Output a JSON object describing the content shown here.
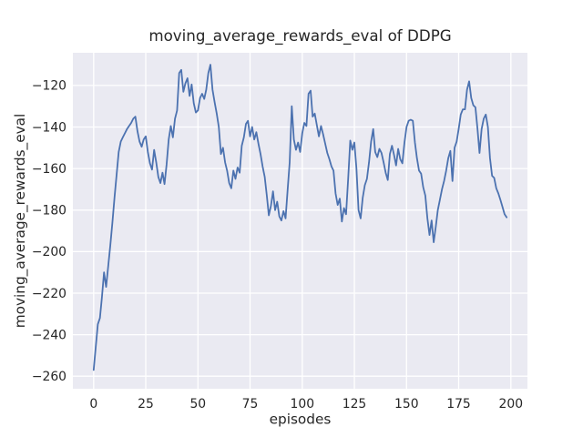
{
  "figure": {
    "background": "#ffffff"
  },
  "chart_data": {
    "type": "line",
    "title": "moving_average_rewards_eval of DDPG",
    "xlabel": "episodes",
    "ylabel": "moving_average_rewards_eval",
    "legend": null,
    "grid": true,
    "plot_bg": "#eaeaf2",
    "grid_color": "#ffffff",
    "line_color": "#4c72b0",
    "text_color": "#262626",
    "xlim": [
      -9.95,
      207.95
    ],
    "ylim": [
      -266.05,
      -104.25
    ],
    "xticks": {
      "values": [
        0,
        25,
        50,
        75,
        100,
        125,
        150,
        175,
        200
      ],
      "labels": [
        "0",
        "25",
        "50",
        "75",
        "100",
        "125",
        "150",
        "175",
        "200"
      ]
    },
    "yticks": {
      "values": [
        -120,
        -140,
        -160,
        -180,
        -200,
        -220,
        -240,
        -260
      ],
      "labels": [
        "−120",
        "−140",
        "−160",
        "−180",
        "−200",
        "−220",
        "−240",
        "−260"
      ]
    },
    "x_start": 0,
    "x_step": 1,
    "values": [
      -257,
      -246,
      -235,
      -232,
      -222,
      -210,
      -217,
      -207,
      -197,
      -186,
      -174,
      -163,
      -152,
      -147,
      -145,
      -143,
      -141,
      -139.5,
      -138,
      -136,
      -135,
      -142,
      -147,
      -149.5,
      -146,
      -144.5,
      -152,
      -157.5,
      -160.5,
      -151,
      -157,
      -164,
      -167,
      -162,
      -167.5,
      -158,
      -146,
      -139.5,
      -145,
      -136,
      -132,
      -114,
      -112.5,
      -123,
      -119,
      -116.5,
      -125,
      -119.5,
      -128.5,
      -133,
      -132,
      -126,
      -124,
      -126.5,
      -122,
      -114,
      -110,
      -122,
      -128,
      -133.5,
      -140,
      -153,
      -150,
      -157,
      -161,
      -167,
      -169.5,
      -161,
      -165,
      -159.5,
      -162,
      -149,
      -145,
      -138.5,
      -137,
      -144.5,
      -140,
      -146,
      -142.5,
      -148,
      -153,
      -159,
      -164,
      -173,
      -182.5,
      -178,
      -171,
      -180,
      -176,
      -183,
      -185,
      -180.5,
      -184,
      -170,
      -157,
      -130,
      -146,
      -151,
      -147.5,
      -152,
      -143,
      -138,
      -139.5,
      -124,
      -122.5,
      -135,
      -133.5,
      -139,
      -144.5,
      -139.5,
      -143.5,
      -148,
      -152.5,
      -155.5,
      -159,
      -161,
      -172,
      -177.5,
      -174.5,
      -185.5,
      -179,
      -182,
      -165,
      -146.5,
      -151,
      -147.5,
      -160,
      -180,
      -184,
      -174,
      -168,
      -165,
      -157,
      -147,
      -141,
      -152,
      -154.5,
      -150.5,
      -152.5,
      -157,
      -162,
      -165.5,
      -153,
      -149,
      -153.5,
      -158.5,
      -150.5,
      -155.5,
      -157.5,
      -147.5,
      -140,
      -137,
      -136.5,
      -137,
      -147.5,
      -155,
      -161,
      -162.5,
      -169,
      -173,
      -184,
      -192,
      -185,
      -195.5,
      -188,
      -180,
      -175,
      -170,
      -166,
      -161,
      -155,
      -151.5,
      -166,
      -150,
      -147,
      -141,
      -134,
      -131.5,
      -131.5,
      -122,
      -118,
      -126,
      -129.5,
      -130.5,
      -141,
      -152.5,
      -141,
      -136,
      -134,
      -140,
      -155,
      -163.5,
      -164.5,
      -169.5,
      -172,
      -175,
      -178.5,
      -182,
      -183.5
    ]
  }
}
